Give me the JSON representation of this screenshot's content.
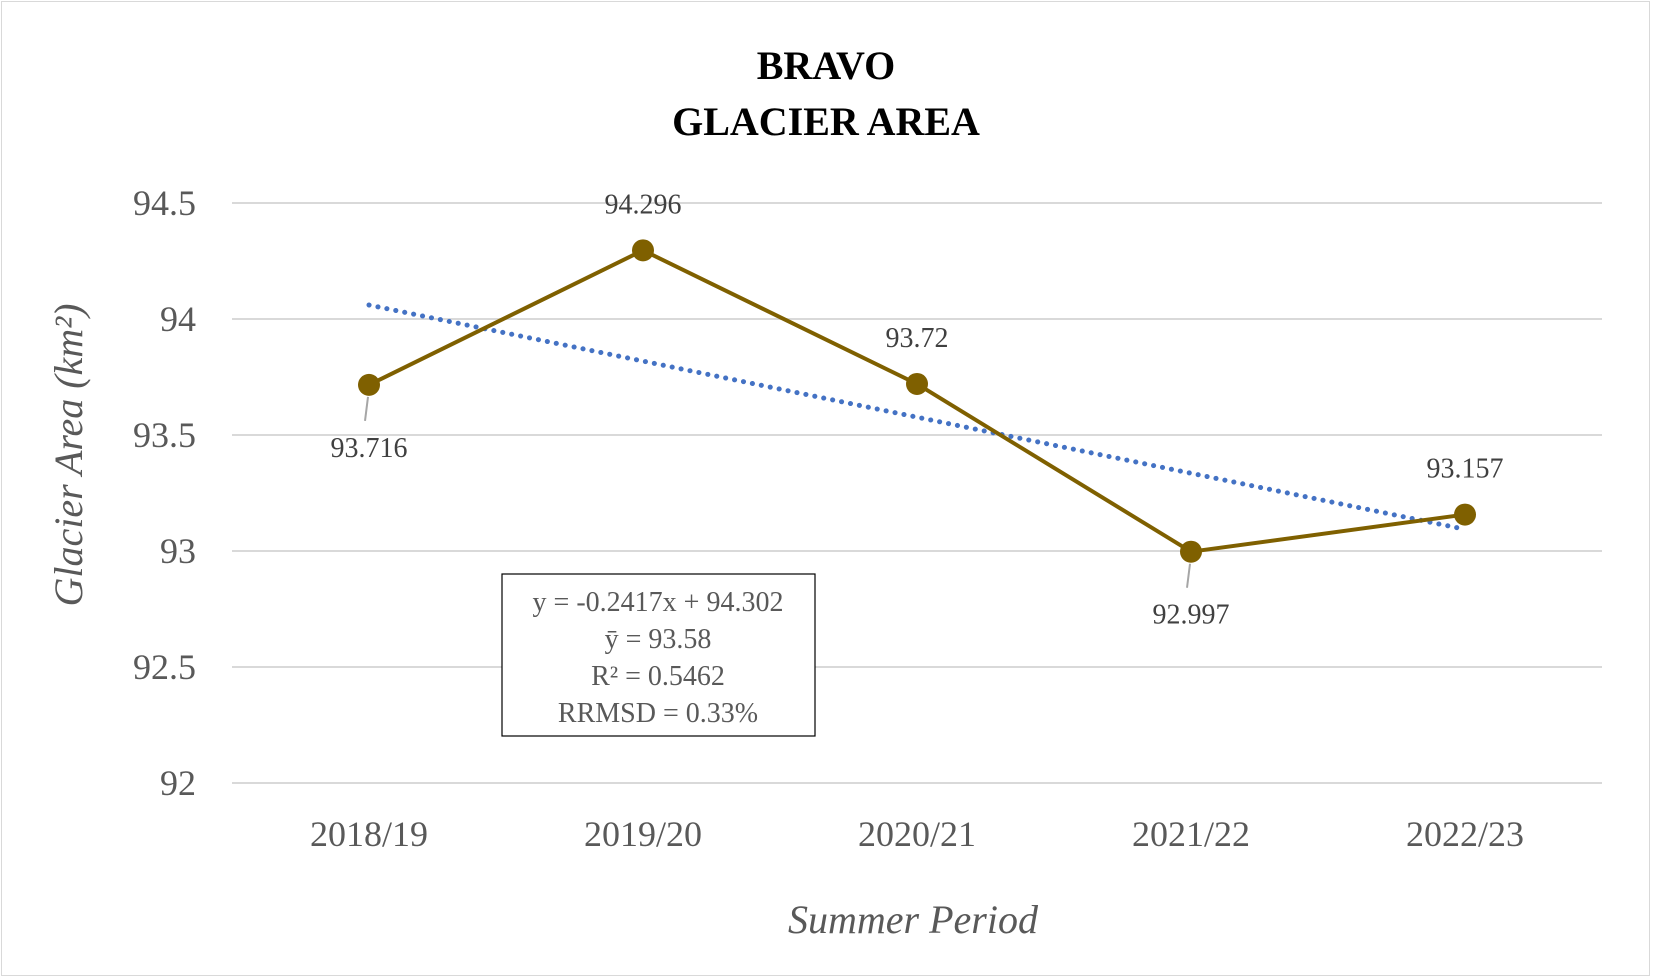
{
  "chart_data": {
    "type": "line",
    "title_lines": [
      "BRAVO",
      "GLACIER AREA"
    ],
    "xlabel": "Summer Period",
    "ylabel": "Glacier Area (km²)",
    "categories": [
      "2018/19",
      "2019/20",
      "2020/21",
      "2021/22",
      "2022/23"
    ],
    "series": [
      {
        "values": [
          93.716,
          94.296,
          93.72,
          92.997,
          93.157
        ],
        "color": "#7f6000",
        "data_labels": [
          "93.716",
          "94.296",
          "93.72",
          "92.997",
          "93.157"
        ]
      }
    ],
    "trendline": {
      "type": "linear",
      "slope": -0.2417,
      "intercept": 94.302,
      "color": "#4472c4",
      "style": "dotted"
    },
    "ylim": [
      92,
      94.5
    ],
    "yticks": [
      92,
      92.5,
      93,
      93.5,
      94,
      94.5
    ],
    "ytick_labels": [
      "92",
      "92.5",
      "93",
      "93.5",
      "94",
      "94.5"
    ],
    "grid": "horizontal",
    "gridline_color": "#d9d9d9",
    "stats_box": [
      "y = -0.2417x + 94.302",
      "ȳ = 93.58",
      "R² = 0.5462",
      "RRMSD = 0.33%"
    ]
  }
}
